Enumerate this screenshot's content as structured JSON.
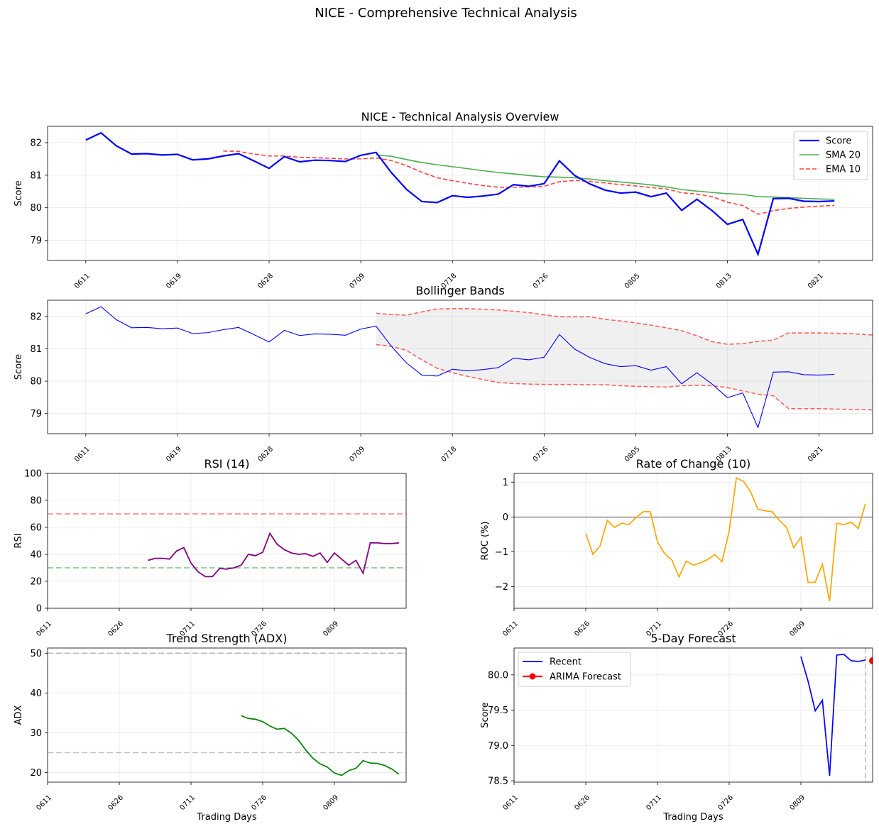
{
  "suptitle": "NICE - Comprehensive Technical Analysis",
  "colors": {
    "score": "#0000ff",
    "sma": "#2ca02c",
    "ema": "#ff0000",
    "band": "#ff0000",
    "band_fill": "#cccccc",
    "rsi": "#800080",
    "roc": "#ffa500",
    "adx": "#008000",
    "forecast": "#ff0000",
    "grey_line": "#9e9e9e"
  },
  "chart_data": [
    {
      "id": "overview",
      "type": "line",
      "title": "NICE - Technical Analysis Overview",
      "ylabel": "Score",
      "xlabel": "",
      "x_range": [
        -2.5,
        51.5
      ],
      "ylim": [
        78.38,
        82.5
      ],
      "yticks": [
        79,
        80,
        81,
        82
      ],
      "xtick_positions": [
        0,
        6,
        12,
        18,
        24,
        30,
        36,
        42,
        48
      ],
      "xtick_labels": [
        "0611",
        "0619",
        "0628",
        "0709",
        "0718",
        "0726",
        "0805",
        "0813",
        "0821"
      ],
      "legend": [
        "Score",
        "SMA 20",
        "EMA 10"
      ],
      "legend_loc": "upper right",
      "series": [
        {
          "name": "Score",
          "start": 0,
          "values": [
            82.08,
            82.3,
            81.9,
            81.65,
            81.66,
            81.62,
            81.64,
            81.47,
            81.5,
            81.59,
            81.66,
            81.44,
            81.21,
            81.57,
            81.41,
            81.46,
            81.45,
            81.42,
            81.61,
            81.7,
            81.08,
            80.56,
            80.19,
            80.16,
            80.37,
            80.32,
            80.36,
            80.42,
            80.71,
            80.66,
            80.74,
            81.44,
            80.99,
            80.73,
            80.54,
            80.45,
            80.48,
            80.34,
            80.45,
            79.92,
            80.26,
            79.91,
            79.49,
            79.64,
            78.57,
            80.28,
            80.29,
            80.2,
            80.19,
            80.21
          ]
        },
        {
          "name": "SMA 20",
          "start": 19,
          "values": [
            81.62,
            81.58,
            81.48,
            81.39,
            81.32,
            81.26,
            81.2,
            81.14,
            81.08,
            81.04,
            80.99,
            80.95,
            80.94,
            80.92,
            80.88,
            80.83,
            80.79,
            80.75,
            80.7,
            80.64,
            80.56,
            80.51,
            80.47,
            80.43,
            80.41,
            80.34,
            80.33,
            80.31,
            80.29,
            80.27,
            80.26
          ]
        },
        {
          "name": "EMA 10",
          "start": 9,
          "values": [
            81.74,
            81.73,
            81.65,
            81.59,
            81.59,
            81.55,
            81.54,
            81.52,
            81.5,
            81.5,
            81.53,
            81.45,
            81.29,
            81.09,
            80.92,
            80.83,
            80.75,
            80.68,
            80.63,
            80.63,
            80.64,
            80.66,
            80.8,
            80.84,
            80.81,
            80.76,
            80.71,
            80.67,
            80.62,
            80.58,
            80.46,
            80.42,
            80.34,
            80.17,
            80.07,
            79.8,
            79.91,
            79.98,
            80.02,
            80.05,
            80.07
          ]
        }
      ]
    },
    {
      "id": "bollinger",
      "type": "line",
      "title": "Bollinger Bands",
      "ylabel": "Score",
      "xlabel": "",
      "x_range": [
        -2.5,
        51.5
      ],
      "ylim": [
        78.38,
        82.5
      ],
      "yticks": [
        79,
        80,
        81,
        82
      ],
      "xtick_positions": [
        0,
        6,
        12,
        18,
        24,
        30,
        36,
        42,
        48
      ],
      "xtick_labels": [
        "0611",
        "0619",
        "0628",
        "0709",
        "0718",
        "0726",
        "0805",
        "0813",
        "0821"
      ],
      "series": [
        {
          "name": "Score",
          "start": 0,
          "values": [
            82.08,
            82.3,
            81.9,
            81.65,
            81.66,
            81.62,
            81.64,
            81.47,
            81.5,
            81.59,
            81.66,
            81.44,
            81.21,
            81.57,
            81.41,
            81.46,
            81.45,
            81.42,
            81.61,
            81.7,
            81.08,
            80.56,
            80.19,
            80.16,
            80.37,
            80.32,
            80.36,
            80.42,
            80.71,
            80.66,
            80.74,
            81.44,
            80.99,
            80.73,
            80.54,
            80.45,
            80.48,
            80.34,
            80.45,
            79.92,
            80.26,
            79.91,
            79.49,
            79.64,
            78.57,
            80.28,
            80.29,
            80.2,
            80.19,
            80.21
          ]
        },
        {
          "name": "Upper Band",
          "start": 19,
          "values": [
            82.1,
            82.06,
            82.04,
            82.14,
            82.23,
            82.24,
            82.24,
            82.22,
            82.2,
            82.16,
            82.12,
            82.05,
            81.99,
            81.99,
            81.99,
            81.91,
            81.86,
            81.8,
            81.73,
            81.65,
            81.56,
            81.4,
            81.22,
            81.14,
            81.16,
            81.23,
            81.27,
            81.49,
            81.49,
            81.49,
            81.48,
            81.47,
            81.44,
            81.41
          ]
        },
        {
          "name": "Lower Band",
          "start": 19,
          "values": [
            81.13,
            81.08,
            80.95,
            80.66,
            80.4,
            80.26,
            80.15,
            80.05,
            79.96,
            79.93,
            79.91,
            79.9,
            79.9,
            79.9,
            79.89,
            79.89,
            79.86,
            79.84,
            79.83,
            79.82,
            79.86,
            79.87,
            79.86,
            79.8,
            79.7,
            79.6,
            79.55,
            79.15,
            79.15,
            79.15,
            79.14,
            79.13,
            79.12,
            79.11
          ]
        }
      ]
    },
    {
      "id": "rsi",
      "type": "line",
      "title": "RSI (14)",
      "ylabel": "RSI",
      "xlabel": "",
      "x_range": [
        0,
        50
      ],
      "ylim": [
        0,
        100
      ],
      "yticks": [
        0,
        20,
        40,
        60,
        80,
        100
      ],
      "xtick_positions": [
        0,
        10,
        20,
        30,
        40
      ],
      "xtick_labels": [
        "0611",
        "0626",
        "0711",
        "0726",
        "0809"
      ],
      "hlines": [
        {
          "y": 70,
          "color": "#ff0000"
        },
        {
          "y": 30,
          "color": "#008000"
        }
      ],
      "series": [
        {
          "name": "RSI",
          "start": 14,
          "values": [
            35.5,
            37,
            37,
            36.5,
            42.5,
            45,
            33.5,
            27,
            23.5,
            23.5,
            29.5,
            29,
            30,
            32,
            40,
            39,
            41.5,
            55.5,
            47.5,
            43.5,
            41,
            40,
            40.5,
            38.5,
            41,
            34,
            41,
            36.5,
            32,
            35.5,
            26,
            48.5,
            48.5,
            48,
            48,
            48.5
          ]
        }
      ]
    },
    {
      "id": "roc",
      "type": "line",
      "title": "Rate of Change (10)",
      "ylabel": "ROC (%)",
      "xlabel": "",
      "x_range": [
        0,
        50
      ],
      "ylim": [
        -2.62,
        1.25
      ],
      "yticks": [
        -2,
        -1,
        0,
        1
      ],
      "xtick_positions": [
        0,
        10,
        20,
        30,
        40
      ],
      "xtick_labels": [
        "0611",
        "0626",
        "0711",
        "0726",
        "0809"
      ],
      "hlines": [
        {
          "y": 0,
          "color": "#000000"
        }
      ],
      "series": [
        {
          "name": "ROC",
          "start": 10,
          "values": [
            -0.48,
            -1.07,
            -0.83,
            -0.1,
            -0.3,
            -0.18,
            -0.22,
            -0.02,
            0.15,
            0.15,
            -0.72,
            -1.05,
            -1.23,
            -1.72,
            -1.27,
            -1.38,
            -1.32,
            -1.22,
            -1.08,
            -1.28,
            -0.4,
            1.12,
            1.02,
            0.72,
            0.22,
            0.18,
            0.15,
            -0.1,
            -0.3,
            -0.88,
            -0.58,
            -1.88,
            -1.87,
            -1.35,
            -2.42,
            -0.18,
            -0.22,
            -0.15,
            -0.33,
            0.38
          ]
        }
      ]
    },
    {
      "id": "adx",
      "type": "line",
      "title": "Trend Strength (ADX)",
      "ylabel": "ADX",
      "xlabel": "Trading Days",
      "x_range": [
        0,
        50
      ],
      "ylim": [
        17.6,
        51.3
      ],
      "yticks": [
        20,
        30,
        40,
        50
      ],
      "xtick_positions": [
        0,
        10,
        20,
        30,
        40
      ],
      "xtick_labels": [
        "0611",
        "0626",
        "0711",
        "0726",
        "0809"
      ],
      "hlines": [
        {
          "y": 50,
          "color": "#808080"
        },
        {
          "y": 25,
          "color": "#808080"
        }
      ],
      "series": [
        {
          "name": "ADX",
          "start": 27,
          "values": [
            34.3,
            33.6,
            33.4,
            32.8,
            31.7,
            30.9,
            31.1,
            29.9,
            28.1,
            25.7,
            23.6,
            22.2,
            21.4,
            19.9,
            19.3,
            20.5,
            21.1,
            23,
            22.4,
            22.3,
            21.8,
            20.9,
            19.6
          ]
        }
      ]
    },
    {
      "id": "forecast",
      "type": "line",
      "title": "5-Day Forecast",
      "ylabel": "Score",
      "xlabel": "Trading Days",
      "x_range": [
        0,
        50
      ],
      "ylim": [
        78.48,
        80.38
      ],
      "yticks": [
        78.5,
        79.0,
        79.5,
        80.0
      ],
      "ytick_labels": [
        "78.5",
        "79.0",
        "79.5",
        "80.0"
      ],
      "xtick_positions": [
        0,
        10,
        20,
        30,
        40
      ],
      "xtick_labels": [
        "0611",
        "0626",
        "0711",
        "0726",
        "0809"
      ],
      "vline": {
        "x": 49,
        "color": "#808080"
      },
      "legend": [
        "Recent",
        "ARIMA Forecast"
      ],
      "legend_loc": "upper left",
      "series": [
        {
          "name": "Recent",
          "start": 40,
          "values": [
            80.26,
            79.91,
            79.49,
            79.64,
            78.57,
            80.28,
            80.29,
            80.2,
            80.19,
            80.21
          ]
        },
        {
          "name": "ARIMA Forecast",
          "start": 50,
          "values": [
            80.2,
            80.2,
            80.2,
            80.2,
            80.2
          ]
        }
      ]
    }
  ]
}
